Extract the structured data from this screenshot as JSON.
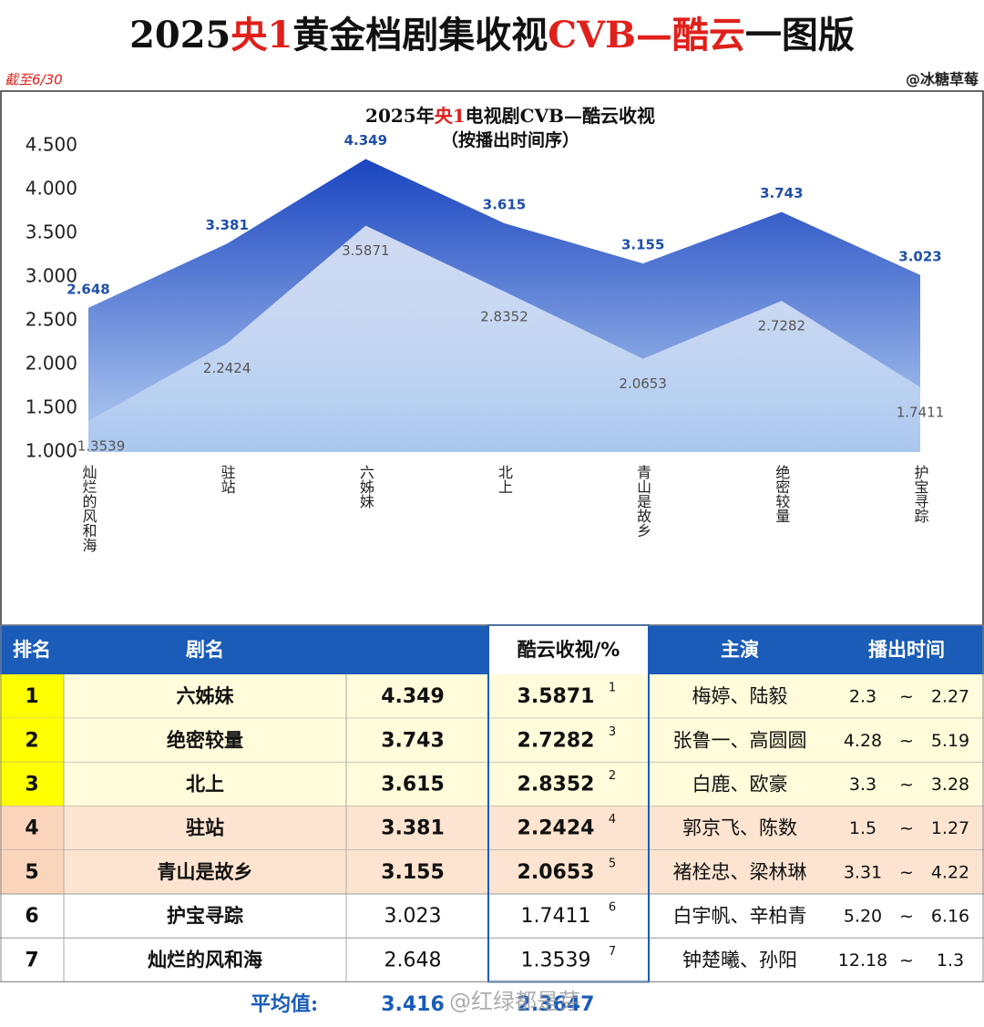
{
  "header": {
    "title_parts": [
      {
        "text": "2025",
        "color": "#111111"
      },
      {
        "text": "央1",
        "color": "#e0201b"
      },
      {
        "text": "黄金档剧集收视",
        "color": "#111111"
      },
      {
        "text": "CVB—酷云",
        "color": "#e0201b"
      },
      {
        "text": "一图版",
        "color": "#111111"
      }
    ],
    "date_note": "截至6/30",
    "author": "@冰糖草莓"
  },
  "chart_data": {
    "type": "area",
    "title_parts": [
      {
        "text": "2025年",
        "color": "#111111"
      },
      {
        "text": "央1",
        "color": "#e0201b"
      },
      {
        "text": "电视剧CVB—酷云收视",
        "color": "#111111"
      }
    ],
    "subtitle": "（按播出时间序）",
    "categories": [
      "灿烂的风和海",
      "驻站",
      "六姊妹",
      "北上",
      "青山是故乡",
      "绝密较量",
      "护宝寻踪"
    ],
    "series": [
      {
        "color": "#1f4fc4",
        "label_color": "#1f4fa8",
        "values": [
          2.648,
          3.381,
          4.349,
          3.615,
          3.155,
          3.743,
          3.023
        ]
      },
      {
        "color": "#a9c6ee",
        "label_color": "#555555",
        "values": [
          1.3539,
          2.2424,
          3.5871,
          2.8352,
          2.0653,
          2.7282,
          1.7411
        ]
      }
    ],
    "ylim": [
      1,
      4.5
    ],
    "yticks": [
      {
        "value": 1,
        "label": "1.000"
      },
      {
        "value": 1.5,
        "label": "1.500"
      },
      {
        "value": 2,
        "label": "2.000"
      },
      {
        "value": 2.5,
        "label": "2.500"
      },
      {
        "value": 3,
        "label": "3.000"
      },
      {
        "value": 3.5,
        "label": "3.500"
      },
      {
        "value": 4,
        "label": "4.000"
      },
      {
        "value": 4.5,
        "label": "4.500"
      }
    ]
  },
  "table": {
    "header": {
      "rank": "排名",
      "name": "剧名",
      "kuyun": "酷云收视/%",
      "actors": "主演",
      "airtime": "播出时间"
    },
    "header_color": "#1a5cb8",
    "separator": "~",
    "rows": [
      [
        "1",
        "六姊妹",
        "4.349",
        "3.5871",
        "1",
        "梅婷、陆毅",
        "2.3",
        "2.27"
      ],
      [
        "2",
        "绝密较量",
        "3.743",
        "2.7282",
        "3",
        "张鲁一、高圆圆",
        "4.28",
        "5.19"
      ],
      [
        "3",
        "北上",
        "3.615",
        "2.8352",
        "2",
        "白鹿、欧豪",
        "3.3",
        "3.28"
      ],
      [
        "4",
        "驻站",
        "3.381",
        "2.2424",
        "4",
        "郭京飞、陈数",
        "1.5",
        "1.27"
      ],
      [
        "5",
        "青山是故乡",
        "3.155",
        "2.0653",
        "5",
        "褚栓忠、梁林琳",
        "3.31",
        "4.22"
      ],
      [
        "6",
        "护宝寻踪",
        "3.023",
        "1.7411",
        "6",
        "白宇帆、辛柏青",
        "5.20",
        "6.16"
      ],
      [
        "7",
        "灿烂的风和海",
        "2.648",
        "1.3539",
        "7",
        "钟楚曦、孙阳",
        "12.18",
        "1.3"
      ]
    ],
    "row_fill": [
      "#fffbdb",
      "#fffbdb",
      "#fffbdb",
      "#fde4d0",
      "#fde4d0",
      null,
      null
    ],
    "rank_fill": [
      "#ffff00",
      "#ffff00",
      "#ffff00",
      "#fad5bb",
      "#fad5bb",
      null,
      null
    ]
  },
  "footer": {
    "average_label": "平均值:",
    "cvb_average": "3.416",
    "kuyun_average": "2.3647",
    "watermark": "@红绿都是芽"
  }
}
